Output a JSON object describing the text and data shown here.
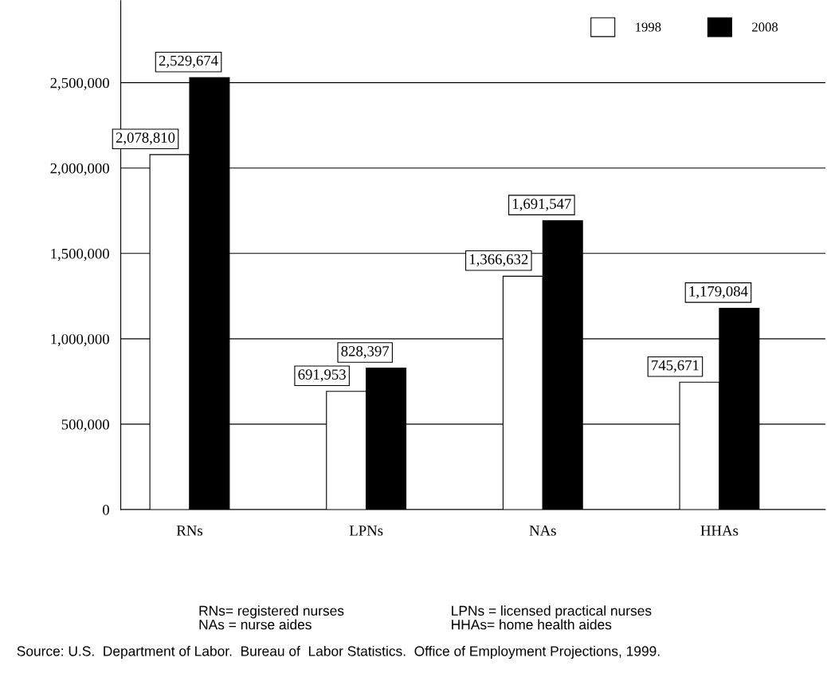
{
  "chart_data": {
    "type": "bar",
    "categories": [
      "RNs",
      "LPNs",
      "NAs",
      "HHAs"
    ],
    "series": [
      {
        "name": "1998",
        "color": "#ffffff",
        "values": [
          2078810,
          691953,
          1366632,
          745671
        ]
      },
      {
        "name": "2008",
        "color": "#000000",
        "values": [
          2529674,
          828397,
          1691547,
          1179084
        ]
      }
    ],
    "ylim": [
      0,
      2980000
    ],
    "yticks": [
      {
        "value": 0,
        "label": "0"
      },
      {
        "value": 500000,
        "label": "500,000"
      },
      {
        "value": 1000000,
        "label": "1,000,000"
      },
      {
        "value": 1500000,
        "label": "1,500,000"
      },
      {
        "value": 2000000,
        "label": "2,000,000"
      },
      {
        "value": 2500000,
        "label": "2,500,000"
      }
    ],
    "value_labels": [
      [
        "2,078,810",
        "691,953",
        "1,366,632",
        "745,671"
      ],
      [
        "2,529,674",
        "828,397",
        "1,691,547",
        "1,179,084"
      ]
    ],
    "grid": "y",
    "legend": "top right",
    "annotations": [
      "RNs= registered nurses",
      "LPNs = licensed practical nurses",
      "NAs = nurse aides",
      "HHAs= home health aides",
      "Source: U.S.  Department of Labor.  Bureau of  Labor Statistics.  Office of Employment Projections, 1999."
    ]
  }
}
